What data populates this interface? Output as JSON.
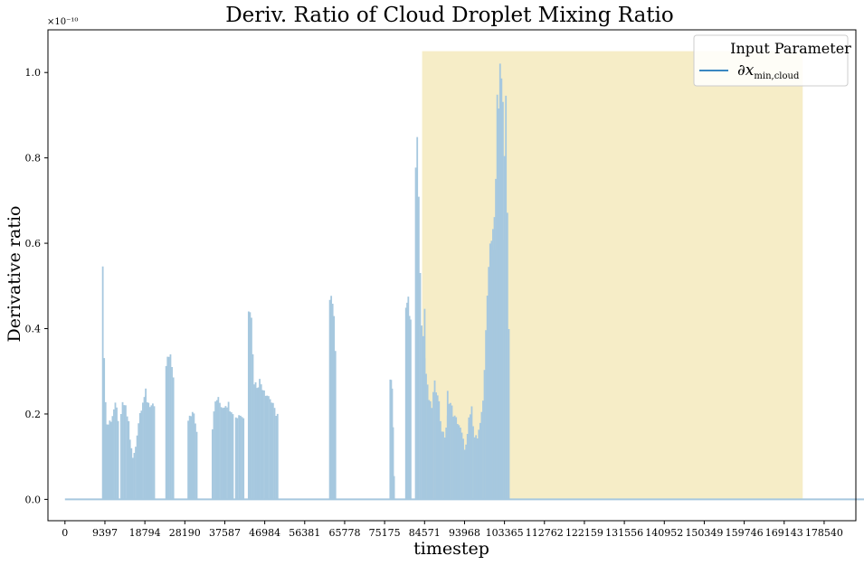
{
  "chart_data": {
    "type": "area",
    "title": "Deriv. Ratio of Cloud Droplet Mixing Ratio",
    "xlabel": "timestep",
    "ylabel": "Derivative ratio",
    "y_offset_label": "×10⁻¹⁰",
    "xlim": [
      -4000,
      186000
    ],
    "ylim": [
      -0.05,
      1.1
    ],
    "x_ticks": [
      0,
      9397,
      18794,
      28190,
      37587,
      46984,
      56381,
      65778,
      75175,
      84571,
      93968,
      103365,
      112762,
      122159,
      131556,
      140952,
      150349,
      159746,
      169143,
      178540
    ],
    "y_ticks": [
      0.0,
      0.2,
      0.4,
      0.6,
      0.8,
      1.0
    ],
    "y_tick_labels": [
      "0.0",
      "0.2",
      "0.4",
      "0.6",
      "0.8",
      "1.0"
    ],
    "grid": false,
    "legend_placement": "top-right",
    "legend_title": "Input Parameter",
    "series": [
      {
        "name": "∂x",
        "name_subscript": "min,cloud",
        "color": "#a6c8df",
        "line_color": "#3a87c1",
        "x_end": 188000,
        "bursts": [
          {
            "start": 8900,
            "end": 12500,
            "profile": [
              0.55,
              0.26,
              0.18,
              0.19,
              0.2,
              0.22,
              0.23,
              0.2
            ]
          },
          {
            "start": 13200,
            "end": 15000,
            "profile": [
              0.2,
              0.24,
              0.23,
              0.21,
              0.19
            ]
          },
          {
            "start": 15300,
            "end": 19000,
            "profile": [
              0.15,
              0.1,
              0.12,
              0.18,
              0.22,
              0.25,
              0.26
            ]
          },
          {
            "start": 19000,
            "end": 21000,
            "profile": [
              0.25,
              0.24,
              0.23,
              0.22
            ]
          },
          {
            "start": 23800,
            "end": 25500,
            "profile": [
              0.33,
              0.35,
              0.34,
              0.31
            ]
          },
          {
            "start": 29000,
            "end": 31000,
            "profile": [
              0.19,
              0.21,
              0.22,
              0.17
            ]
          },
          {
            "start": 34700,
            "end": 39500,
            "profile": [
              0.18,
              0.25,
              0.24,
              0.23,
              0.24,
              0.23,
              0.22
            ]
          },
          {
            "start": 40200,
            "end": 42000,
            "profile": [
              0.2,
              0.21,
              0.21,
              0.2
            ]
          },
          {
            "start": 43200,
            "end": 45500,
            "profile": [
              0.48,
              0.49,
              0.3,
              0.28,
              0.29
            ]
          },
          {
            "start": 45800,
            "end": 50000,
            "profile": [
              0.29,
              0.28,
              0.26,
              0.25,
              0.22,
              0.21
            ]
          },
          {
            "start": 62300,
            "end": 63600,
            "profile": [
              0.48,
              0.49,
              0.45,
              0.38
            ]
          },
          {
            "start": 76500,
            "end": 77400,
            "profile": [
              0.31,
              0.28,
              0.06
            ]
          },
          {
            "start": 80200,
            "end": 81300,
            "profile": [
              0.49,
              0.48,
              0.44
            ]
          },
          {
            "start": 82500,
            "end": 84600,
            "profile": [
              0.8,
              0.88,
              0.55,
              0.4,
              0.47
            ]
          },
          {
            "start": 84600,
            "end": 90000,
            "profile": [
              0.35,
              0.26,
              0.22,
              0.28,
              0.27,
              0.18,
              0.15,
              0.2
            ]
          },
          {
            "start": 90000,
            "end": 95000,
            "profile": [
              0.26,
              0.23,
              0.2,
              0.19,
              0.16,
              0.12,
              0.18
            ]
          },
          {
            "start": 95000,
            "end": 101000,
            "profile": [
              0.2,
              0.22,
              0.16,
              0.15,
              0.18,
              0.25,
              0.4,
              0.6,
              0.66,
              0.68
            ]
          },
          {
            "start": 101000,
            "end": 103000,
            "profile": [
              0.6,
              0.98,
              1.05,
              0.95
            ]
          },
          {
            "start": 103000,
            "end": 104400,
            "profile": [
              0.64,
              1.03,
              0.4
            ]
          }
        ]
      }
    ],
    "shaded_region": {
      "x_start": 84000,
      "x_end": 173500,
      "y_start": 0.0,
      "y_end": 1.05,
      "color": "#f6edc7"
    }
  }
}
